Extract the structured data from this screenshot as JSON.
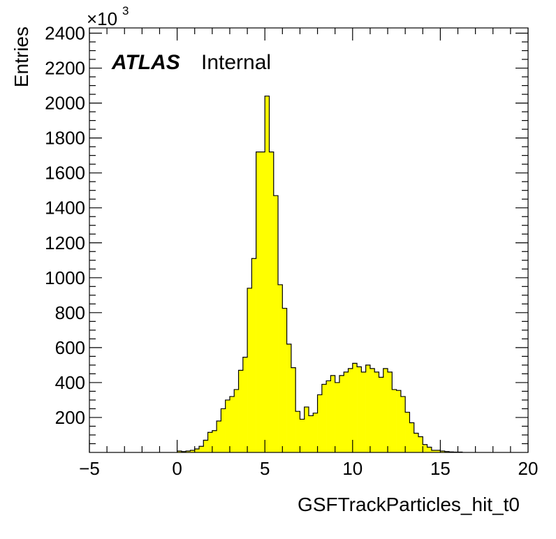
{
  "chart_data": {
    "type": "bar",
    "histogram": true,
    "fill_color": "#ffff00",
    "line_color": "#000000",
    "title": "",
    "xlabel": "GSFTrackParticles_hit_t0",
    "ylabel": "Entries",
    "y_multiplier": "×10",
    "y_multiplier_exp": "3",
    "label_atlas": "ATLAS",
    "label_status": "Internal",
    "xlim": [
      -5,
      20
    ],
    "ylim": [
      0,
      2430
    ],
    "bin_start": 0,
    "bin_width": 0.25,
    "x_ticks": [
      "−5",
      "0",
      "5",
      "10",
      "15",
      "20"
    ],
    "x_tick_values": [
      -5,
      0,
      5,
      10,
      15,
      20
    ],
    "y_ticks": [
      "200",
      "400",
      "600",
      "800",
      "1000",
      "1200",
      "1400",
      "1600",
      "1800",
      "2000",
      "2200",
      "2400"
    ],
    "y_tick_values": [
      200,
      400,
      600,
      800,
      1000,
      1200,
      1400,
      1600,
      1800,
      2000,
      2200,
      2400
    ],
    "values": [
      8,
      5,
      8,
      12,
      20,
      35,
      70,
      115,
      125,
      180,
      250,
      300,
      320,
      360,
      470,
      545,
      940,
      1110,
      1720,
      1720,
      2040,
      1720,
      1470,
      960,
      825,
      620,
      485,
      235,
      190,
      260,
      210,
      225,
      330,
      390,
      410,
      440,
      400,
      440,
      460,
      480,
      510,
      490,
      460,
      500,
      480,
      460,
      430,
      480,
      460,
      360,
      355,
      320,
      230,
      170,
      110,
      90,
      45,
      30,
      12,
      12,
      8,
      5,
      3,
      2,
      2
    ]
  }
}
